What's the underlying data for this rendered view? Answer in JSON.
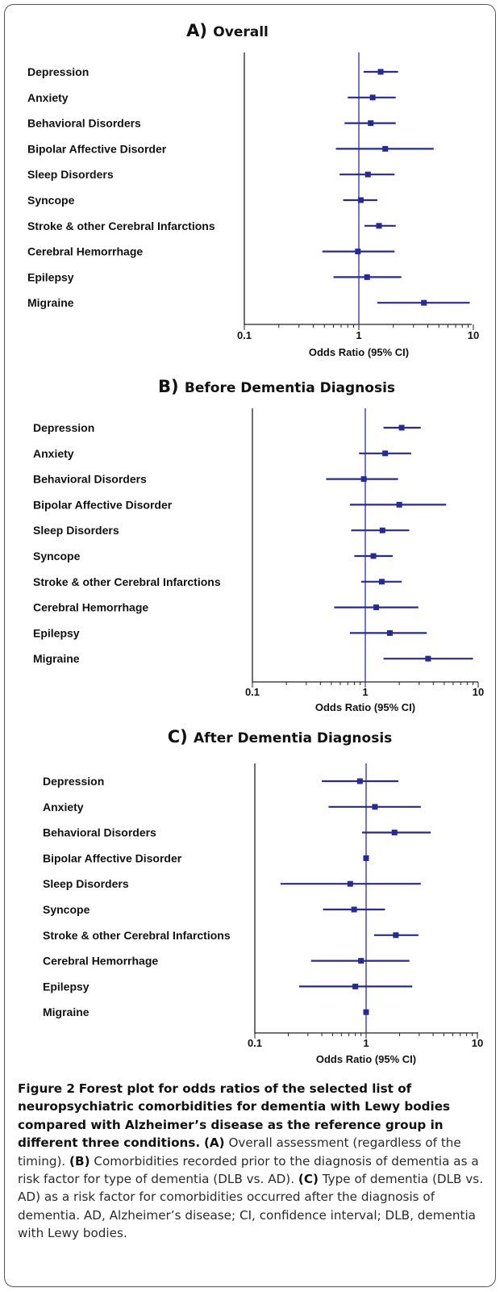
{
  "colors": {
    "ci_line": "#27289a",
    "ref_line": "#3a3ac0",
    "axis": "#222222"
  },
  "chart_data": [
    {
      "type": "forest",
      "panel": "A)",
      "title": "Overall",
      "xlabel": "Odds Ratio (95% CI)",
      "xscale": "log",
      "xlim": [
        0.1,
        10
      ],
      "xticks": [
        "0.1",
        "1",
        "10"
      ],
      "reference_line": 1,
      "categories": [
        "Depression",
        "Anxiety",
        "Behavioral Disorders",
        "Bipolar Affective Disorder",
        "Sleep Disorders",
        "Syncope",
        "Stroke & other Cerebral Infarctions",
        "Cerebral Hemorrhage",
        "Epilepsy",
        "Migraine"
      ],
      "or": [
        1.55,
        1.32,
        1.27,
        1.7,
        1.2,
        1.04,
        1.5,
        0.98,
        1.18,
        3.7
      ],
      "ci_low": [
        1.1,
        0.8,
        0.75,
        0.63,
        0.68,
        0.73,
        1.12,
        0.48,
        0.6,
        1.45
      ],
      "ci_high": [
        2.2,
        2.1,
        2.1,
        4.5,
        2.05,
        1.45,
        2.1,
        2.05,
        2.35,
        9.3
      ]
    },
    {
      "type": "forest",
      "panel": "B)",
      "title": "Before Dementia Diagnosis",
      "xlabel": "Odds Ratio (95% CI)",
      "xscale": "log",
      "xlim": [
        0.1,
        10
      ],
      "xticks": [
        "0.1",
        "1",
        "10"
      ],
      "reference_line": 1,
      "categories": [
        "Depression",
        "Anxiety",
        "Behavioral Disorders",
        "Bipolar Affective Disorder",
        "Sleep Disorders",
        "Syncope",
        "Stroke & other Cerebral Infarctions",
        "Cerebral Hemorrhage",
        "Epilepsy",
        "Migraine"
      ],
      "or": [
        2.1,
        1.5,
        0.97,
        2.0,
        1.42,
        1.18,
        1.4,
        1.25,
        1.65,
        3.6
      ],
      "ci_low": [
        1.45,
        0.88,
        0.45,
        0.73,
        0.75,
        0.8,
        0.92,
        0.53,
        0.73,
        1.45
      ],
      "ci_high": [
        3.1,
        2.55,
        1.95,
        5.2,
        2.45,
        1.75,
        2.1,
        2.95,
        3.5,
        9.0
      ]
    },
    {
      "type": "forest",
      "panel": "C)",
      "title": "After Dementia Diagnosis",
      "xlabel": "Odds Ratio (95% CI)",
      "xscale": "log",
      "xlim": [
        0.1,
        10
      ],
      "xticks": [
        "0.1",
        "1",
        "10"
      ],
      "reference_line": 1,
      "categories": [
        "Depression",
        "Anxiety",
        "Behavioral Disorders",
        "Bipolar Affective Disorder",
        "Sleep Disorders",
        "Syncope",
        "Stroke & other Cerebral Infarctions",
        "Cerebral Hemorrhage",
        "Epilepsy",
        "Migraine"
      ],
      "or": [
        0.88,
        1.2,
        1.8,
        1.0,
        0.72,
        0.78,
        1.85,
        0.9,
        0.8,
        1.0
      ],
      "ci_low": [
        0.4,
        0.46,
        0.92,
        1.0,
        0.17,
        0.41,
        1.18,
        0.32,
        0.25,
        1.0
      ],
      "ci_high": [
        1.95,
        3.1,
        3.8,
        1.0,
        3.1,
        1.48,
        2.95,
        2.45,
        2.6,
        1.0
      ]
    }
  ],
  "caption": {
    "figure_label": "Figure 2",
    "title": "Forest plot for odds ratios of the selected list of neuropsychiatric comorbidities for dementia with Lewy bodies compared with Alzheimer’s disease as the reference group in different three conditions.",
    "parts": [
      {
        "tag": "(A)",
        "text": "Overall assessment (regardless of the timing)."
      },
      {
        "tag": "(B)",
        "text": "Comorbidities recorded prior to the diagnosis of dementia as a risk factor for type of dementia (DLB vs. AD)."
      },
      {
        "tag": "(C)",
        "text": "Type of dementia (DLB vs. AD) as a risk factor for comorbidities occurred after the diagnosis of dementia. AD, Alzheimer’s disease; CI, confidence interval; DLB, dementia with Lewy bodies."
      }
    ]
  }
}
